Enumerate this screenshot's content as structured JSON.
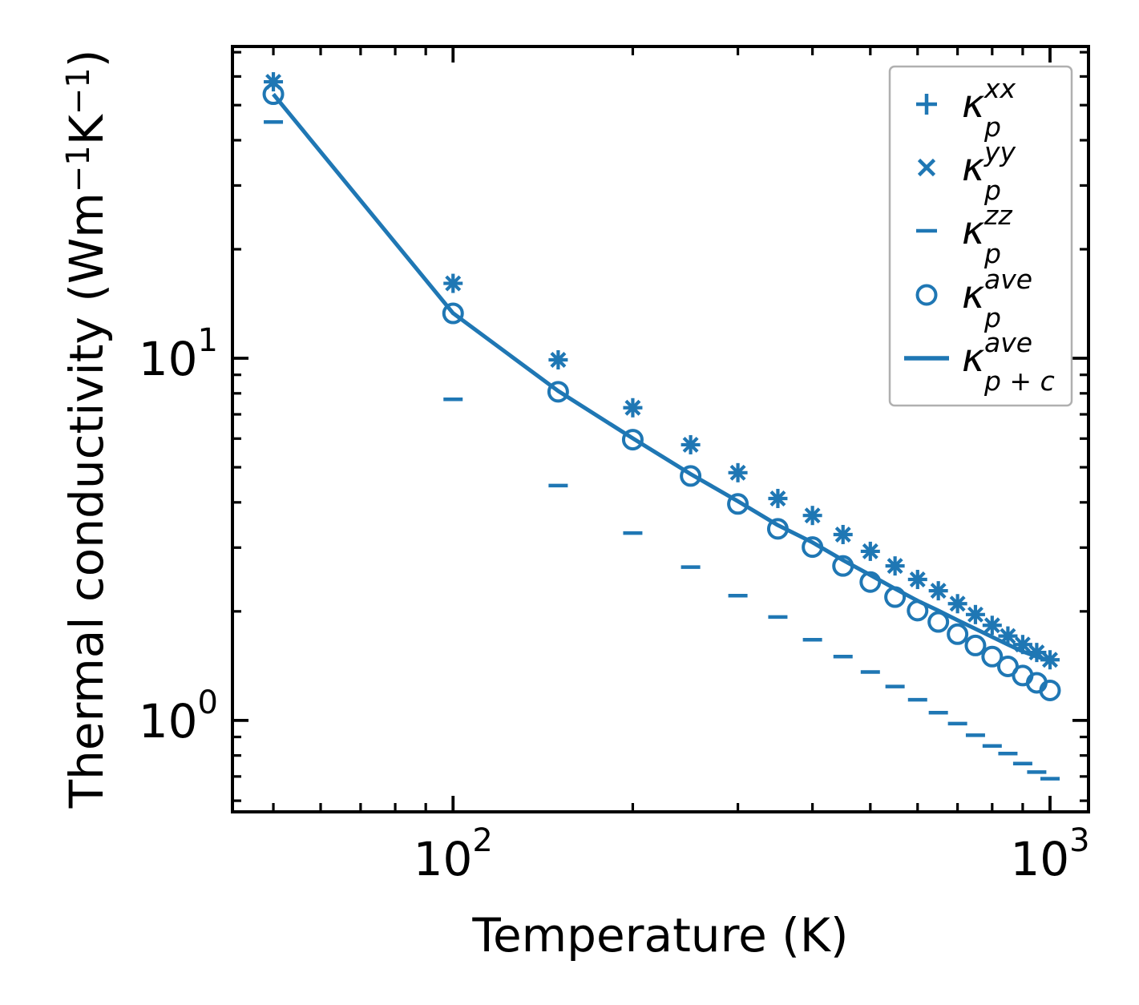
{
  "figure": {
    "background": "#ffffff",
    "accent_color": "#1f77b4",
    "axis_color": "#000000",
    "legend_border_color": "#b0b0b0"
  },
  "chart_data": {
    "type": "line",
    "title": "",
    "xlabel": "Temperature (K)",
    "ylabel": "Thermal conductivity (Wm⁻¹K⁻¹)",
    "ylabel_parts": [
      {
        "t": "Thermal conductivity (Wm",
        "sup": false
      },
      {
        "t": "−1",
        "sup": true
      },
      {
        "t": "K",
        "sup": false
      },
      {
        "t": "−1",
        "sup": true
      },
      {
        "t": ")",
        "sup": false
      }
    ],
    "x_scale": "log",
    "y_scale": "log",
    "xlim": [
      42.7,
      1160
    ],
    "ylim": [
      0.559,
      72.6
    ],
    "grid": false,
    "legend_position": "upper right",
    "x": [
      50,
      100,
      150,
      200,
      250,
      300,
      350,
      400,
      450,
      500,
      550,
      600,
      650,
      700,
      750,
      800,
      850,
      900,
      950,
      1000
    ],
    "series": [
      {
        "name": "kappa_p_xx",
        "marker": "plus",
        "legend_flat": "κ_p^xx",
        "legend": {
          "kappa": "κ",
          "sup": "xx",
          "sub": "p"
        },
        "values": [
          58.0,
          16.1,
          9.9,
          7.3,
          5.77,
          4.83,
          4.1,
          3.68,
          3.26,
          2.93,
          2.67,
          2.45,
          2.28,
          2.1,
          1.96,
          1.83,
          1.71,
          1.62,
          1.54,
          1.47
        ]
      },
      {
        "name": "kappa_p_yy",
        "marker": "x",
        "legend_flat": "κ_p^yy",
        "legend": {
          "kappa": "κ",
          "sup": "yy",
          "sub": "p"
        },
        "values": [
          58.0,
          16.1,
          9.9,
          7.3,
          5.77,
          4.83,
          4.1,
          3.68,
          3.26,
          2.93,
          2.67,
          2.45,
          2.28,
          2.1,
          1.96,
          1.83,
          1.71,
          1.62,
          1.54,
          1.47
        ]
      },
      {
        "name": "kappa_p_zz",
        "marker": "minus",
        "legend_flat": "κ_p^zz",
        "legend": {
          "kappa": "κ",
          "sup": "zz",
          "sub": "p"
        },
        "values": [
          44.9,
          7.7,
          4.45,
          3.29,
          2.65,
          2.21,
          1.93,
          1.67,
          1.5,
          1.36,
          1.24,
          1.14,
          1.05,
          0.98,
          0.91,
          0.85,
          0.81,
          0.76,
          0.72,
          0.69
        ]
      },
      {
        "name": "kappa_p_ave",
        "marker": "circle",
        "legend_flat": "κ_p^ave",
        "legend": {
          "kappa": "κ",
          "sup": "ave",
          "sub": "p"
        },
        "values": [
          53.6,
          13.3,
          8.08,
          5.96,
          4.73,
          3.96,
          3.38,
          3.01,
          2.67,
          2.41,
          2.19,
          2.01,
          1.87,
          1.73,
          1.61,
          1.5,
          1.41,
          1.33,
          1.27,
          1.21
        ]
      },
      {
        "name": "kappa_p_plus_c_ave",
        "marker": "line",
        "legend_flat": "κ_p+c^ave",
        "legend": {
          "kappa": "κ",
          "sup": "ave",
          "sub": "p + c"
        },
        "values": [
          53.6,
          13.32,
          8.12,
          6.01,
          4.79,
          4.03,
          3.46,
          3.1,
          2.77,
          2.52,
          2.31,
          2.14,
          2.01,
          1.89,
          1.79,
          1.7,
          1.62,
          1.55,
          1.5,
          1.46
        ]
      }
    ],
    "x_axis": {
      "major_ticks": [
        {
          "value": 100,
          "base": "10",
          "exp": "2"
        },
        {
          "value": 1000,
          "base": "10",
          "exp": "3"
        }
      ],
      "minor_ticks": [
        50,
        60,
        70,
        80,
        90,
        200,
        300,
        400,
        500,
        600,
        700,
        800,
        900
      ]
    },
    "y_axis": {
      "major_ticks": [
        {
          "value": 10,
          "base": "10",
          "exp": "1"
        },
        {
          "value": 1,
          "base": "10",
          "exp": "0"
        }
      ],
      "minor_ticks": [
        0.6,
        0.7,
        0.8,
        0.9,
        2,
        3,
        4,
        5,
        6,
        7,
        8,
        9,
        20,
        30,
        40,
        50,
        60,
        70
      ]
    }
  }
}
